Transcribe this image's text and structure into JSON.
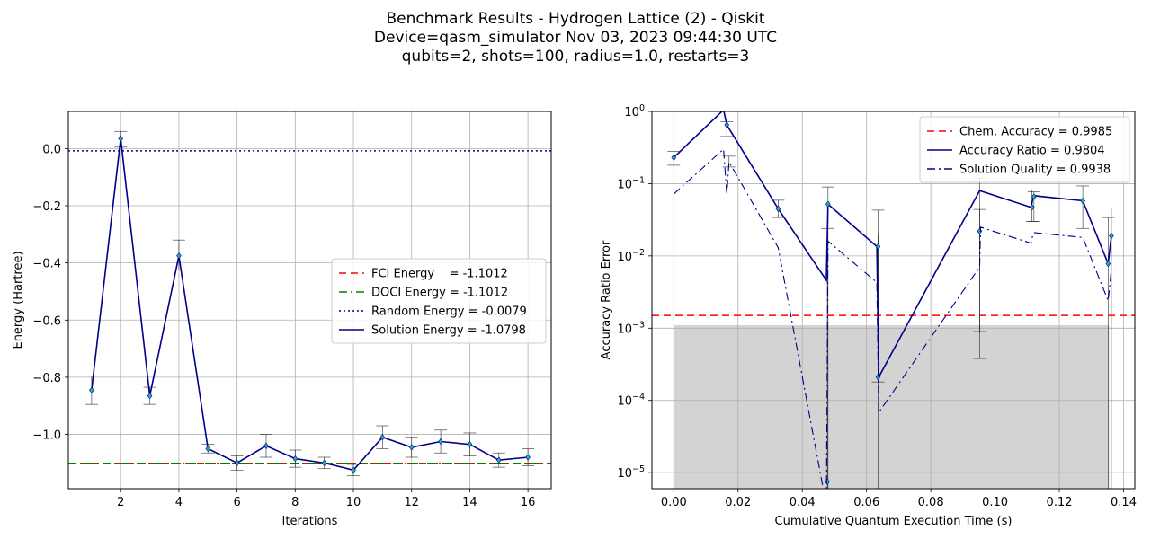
{
  "figure": {
    "title_lines": [
      "Benchmark Results - Hydrogen Lattice (2) - Qiskit",
      "Device=qasm_simulator  Nov 03, 2023 09:44:30 UTC",
      "qubits=2, shots=100, radius=1.0, restarts=3"
    ]
  },
  "chart_data": [
    {
      "type": "line",
      "xlabel": "Iterations",
      "ylabel": "Energy (Hartree)",
      "xlim": [
        0.2,
        16.8
      ],
      "ylim": [
        -1.19,
        0.13
      ],
      "xticks": [
        2,
        4,
        6,
        8,
        10,
        12,
        14,
        16
      ],
      "xtick_labels": [
        "2",
        "4",
        "6",
        "8",
        "10",
        "12",
        "14",
        "16"
      ],
      "yticks": [
        0.0,
        -0.2,
        -0.4,
        -0.6,
        -0.8,
        -1.0
      ],
      "ytick_labels": [
        "0.0",
        "−0.2",
        "−0.4",
        "−0.6",
        "−0.8",
        "−1.0"
      ],
      "grid": true,
      "legend_position": "center-right",
      "hlines": [
        {
          "label": "FCI Energy    = -1.1012",
          "y": -1.1012,
          "color": "#ff0000",
          "style": "dashed"
        },
        {
          "label": "DOCI Energy = -1.1012",
          "y": -1.1012,
          "color": "#008000",
          "style": "dashdot"
        },
        {
          "label": "Random Energy = -0.0079",
          "y": -0.0079,
          "color": "#00008b",
          "style": "dotted"
        }
      ],
      "series": [
        {
          "name": "Solution Energy = -1.0798",
          "color": "#00008b",
          "x": [
            1,
            2,
            3,
            4,
            5,
            6,
            7,
            8,
            9,
            10,
            11,
            12,
            13,
            14,
            15,
            16
          ],
          "y": [
            -0.845,
            0.035,
            -0.865,
            -0.375,
            -1.05,
            -1.1,
            -1.04,
            -1.085,
            -1.1,
            -1.125,
            -1.01,
            -1.045,
            -1.025,
            -1.035,
            -1.09,
            -1.08
          ],
          "err_low": [
            -0.895,
            0.005,
            -0.895,
            -0.425,
            -1.065,
            -1.125,
            -1.08,
            -1.115,
            -1.12,
            -1.145,
            -1.05,
            -1.08,
            -1.065,
            -1.075,
            -1.115,
            -1.11
          ],
          "err_high": [
            -0.795,
            0.06,
            -0.835,
            -0.32,
            -1.035,
            -1.075,
            -1.0,
            -1.055,
            -1.08,
            -1.105,
            -0.97,
            -1.01,
            -0.985,
            -0.995,
            -1.065,
            -1.05
          ]
        }
      ]
    },
    {
      "type": "line",
      "xlabel": "Cumulative Quantum Execution Time (s)",
      "ylabel": "Accuracy Ratio Error",
      "yscale": "log",
      "xlim": [
        -0.0068,
        0.1435
      ],
      "ylim": [
        6e-06,
        1.0
      ],
      "xticks": [
        0.0,
        0.02,
        0.04,
        0.06,
        0.08,
        0.1,
        0.12,
        0.14
      ],
      "xtick_labels": [
        "0.00",
        "0.02",
        "0.04",
        "0.06",
        "0.08",
        "0.10",
        "0.12",
        "0.14"
      ],
      "yticks": [
        1.0,
        0.1,
        0.01,
        0.001,
        0.0001,
        1e-05
      ],
      "ytick_labels": [
        [
          "10",
          "0"
        ],
        [
          "10",
          "−1"
        ],
        [
          "10",
          "−2"
        ],
        [
          "10",
          "−3"
        ],
        [
          "10",
          "−4"
        ],
        [
          "10",
          "−5"
        ]
      ],
      "grid": true,
      "legend_position": "top-right",
      "hlines": [
        {
          "label": "Chem. Accuracy = 0.9985",
          "y": 0.0015,
          "color": "#ff0000",
          "style": "dashed"
        }
      ],
      "shaded_region": {
        "x_from": 0.0,
        "x_to": 0.1355,
        "y_from": 6e-06,
        "y_to": 0.0011,
        "color": "#d3d3d3"
      },
      "vlines_x": [
        0.0478,
        0.0636,
        0.135
      ],
      "series": [
        {
          "name": "Accuracy Ratio = 0.9804",
          "color": "#00008b",
          "style": "solid",
          "x": [
            0.0,
            0.0155,
            0.0165,
            0.0325,
            0.0475,
            0.048,
            0.0632,
            0.0638,
            0.0952,
            0.1112,
            0.1118,
            0.1123,
            0.1273,
            0.1352,
            0.1362
          ],
          "y": [
            0.23,
            1.05,
            0.65,
            0.045,
            0.0046,
            0.052,
            0.0135,
            0.00021,
            0.08,
            0.047,
            0.063,
            0.068,
            0.058,
            0.0078,
            0.019
          ],
          "markers_x": [
            0.0,
            0.0165,
            0.0325,
            0.048,
            0.0478,
            0.0636,
            0.0636,
            0.0952,
            0.1115,
            0.1121,
            0.1273,
            0.1352,
            0.1362
          ],
          "markers_y": [
            0.23,
            0.65,
            0.045,
            0.052,
            7.5e-06,
            0.0135,
            0.00021,
            0.022,
            0.047,
            0.066,
            0.058,
            0.0078,
            0.019
          ]
        },
        {
          "name": "Solution Quality = 0.9938",
          "color": "#00008b",
          "style": "dashdot",
          "x": [
            0.0,
            0.0155,
            0.0165,
            0.0172,
            0.0325,
            0.0475,
            0.048,
            0.0632,
            0.0638,
            0.0952,
            0.0955,
            0.1112,
            0.1118,
            0.1123,
            0.1273,
            0.1352,
            0.1362
          ],
          "y": [
            0.072,
            0.3,
            0.07,
            0.2,
            0.013,
            3.5e-06,
            0.016,
            0.0043,
            6.8e-05,
            0.007,
            0.025,
            0.015,
            0.02,
            0.021,
            0.018,
            0.0024,
            0.0065
          ]
        }
      ],
      "error_bars": [
        {
          "x": 0.0,
          "low": 0.18,
          "high": 0.28
        },
        {
          "x": 0.0165,
          "low": 0.45,
          "high": 0.72
        },
        {
          "x": 0.0172,
          "low": 0.17,
          "high": 0.24
        },
        {
          "x": 0.0325,
          "low": 0.034,
          "high": 0.059
        },
        {
          "x": 0.048,
          "low": 5.7e-06,
          "high": 0.09
        },
        {
          "x": 0.0478,
          "low": 5.7e-06,
          "high": 0.024
        },
        {
          "x": 0.0636,
          "low": 5.7e-06,
          "high": 0.043
        },
        {
          "x": 0.0636,
          "low": 0.00018,
          "high": 0.02
        },
        {
          "x": 0.0952,
          "low": 0.00038,
          "high": 0.12
        },
        {
          "x": 0.0952,
          "low": 0.0009,
          "high": 0.044
        },
        {
          "x": 0.1115,
          "low": 0.03,
          "high": 0.082
        },
        {
          "x": 0.1121,
          "low": 0.03,
          "high": 0.077
        },
        {
          "x": 0.1273,
          "low": 0.024,
          "high": 0.093
        },
        {
          "x": 0.1352,
          "low": 5.7e-06,
          "high": 0.034
        },
        {
          "x": 0.1362,
          "low": 5.7e-06,
          "high": 0.046
        }
      ]
    }
  ]
}
